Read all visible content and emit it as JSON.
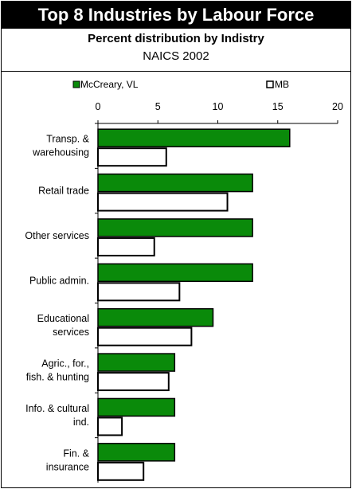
{
  "header": {
    "title": "Top 8 Industries by Labour Force",
    "subtitle": "Percent distribution by Indistry",
    "subtitle2": "NAICS 2002"
  },
  "colors": {
    "series1": "#0a8a0a",
    "series2": "#ffffff"
  },
  "chart_data": {
    "type": "bar",
    "orientation": "horizontal",
    "title": "Top 8 Industries by Labour Force",
    "subtitle": "Percent distribution by Indistry",
    "categories": [
      [
        "Transp. &",
        "warehousing"
      ],
      [
        "Retail trade"
      ],
      [
        "Other services"
      ],
      [
        "Public admin."
      ],
      [
        "Educational",
        "services"
      ],
      [
        "Agric., for.,",
        "fish. & hunting"
      ],
      [
        "Info. & cultural",
        "ind."
      ],
      [
        "Fin. &",
        "insurance"
      ]
    ],
    "series": [
      {
        "name": "McCreary, VL",
        "values": [
          16.0,
          12.9,
          12.9,
          12.9,
          9.6,
          6.4,
          6.4,
          6.4
        ]
      },
      {
        "name": "MB",
        "values": [
          5.7,
          10.8,
          4.7,
          6.8,
          7.8,
          5.9,
          2.0,
          3.8
        ]
      }
    ],
    "xlim": [
      0,
      20
    ],
    "xticks": [
      0,
      5,
      10,
      15,
      20
    ],
    "legend_position": "top",
    "grid": false
  }
}
